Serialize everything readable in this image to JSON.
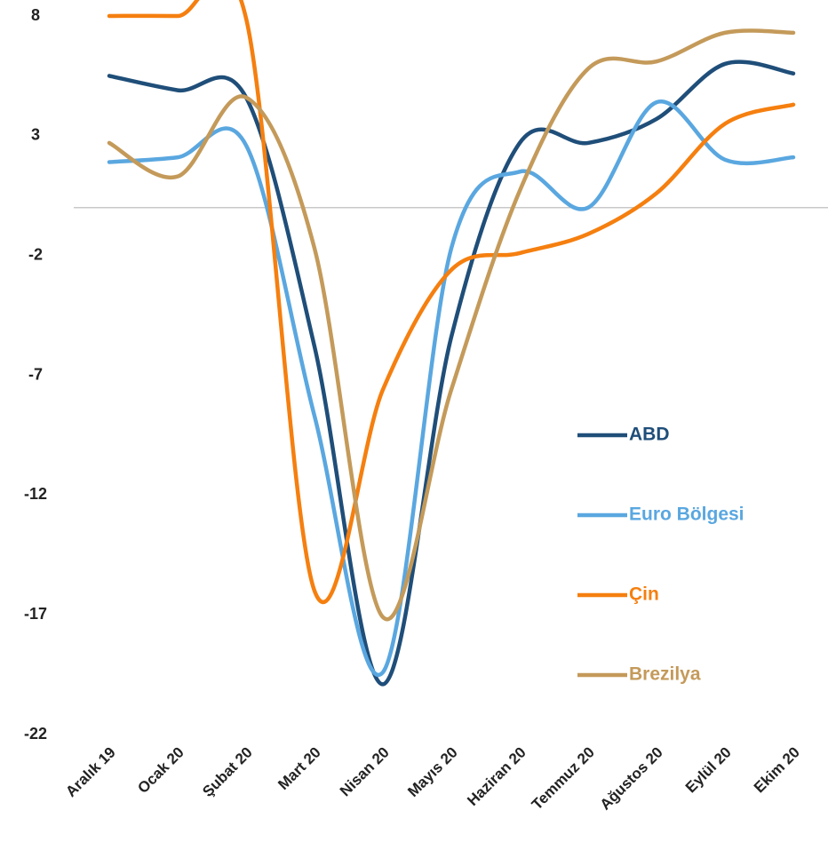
{
  "chart_data": {
    "type": "line",
    "categories": [
      "Aralık 19",
      "Ocak 20",
      "Şubat 20",
      "Mart 20",
      "Nisan 20",
      "Mayıs 20",
      "Haziran 20",
      "Temmuz 20",
      "Ağustos 20",
      "Eylül 20",
      "Ekim 20"
    ],
    "series": [
      {
        "name": "ABD",
        "color": "#1f4e79",
        "values": [
          5.5,
          4.9,
          4.6,
          -5.8,
          -19.9,
          -5.4,
          2.7,
          2.7,
          3.7,
          6.0,
          5.6
        ]
      },
      {
        "name": "Euro Bölgesi",
        "color": "#5aa7e0",
        "values": [
          1.9,
          2.1,
          2.6,
          -8.7,
          -19.4,
          -1.7,
          1.5,
          0.0,
          4.4,
          2.0,
          2.1
        ]
      },
      {
        "name": "Çin",
        "color": "#f57f0f",
        "values": [
          8.0,
          8.0,
          7.9,
          -16.0,
          -7.6,
          -2.6,
          -1.9,
          -1.1,
          0.6,
          3.5,
          4.3
        ]
      },
      {
        "name": "Brezilya",
        "color": "#c49a5a",
        "values": [
          2.7,
          1.3,
          4.6,
          -1.7,
          -17.1,
          -7.6,
          0.7,
          5.8,
          6.1,
          7.3,
          7.3
        ]
      }
    ],
    "ylim": [
      -22,
      8
    ],
    "yticks": [
      8,
      3,
      -2,
      -7,
      -12,
      -17,
      -22
    ],
    "legend": "right"
  }
}
